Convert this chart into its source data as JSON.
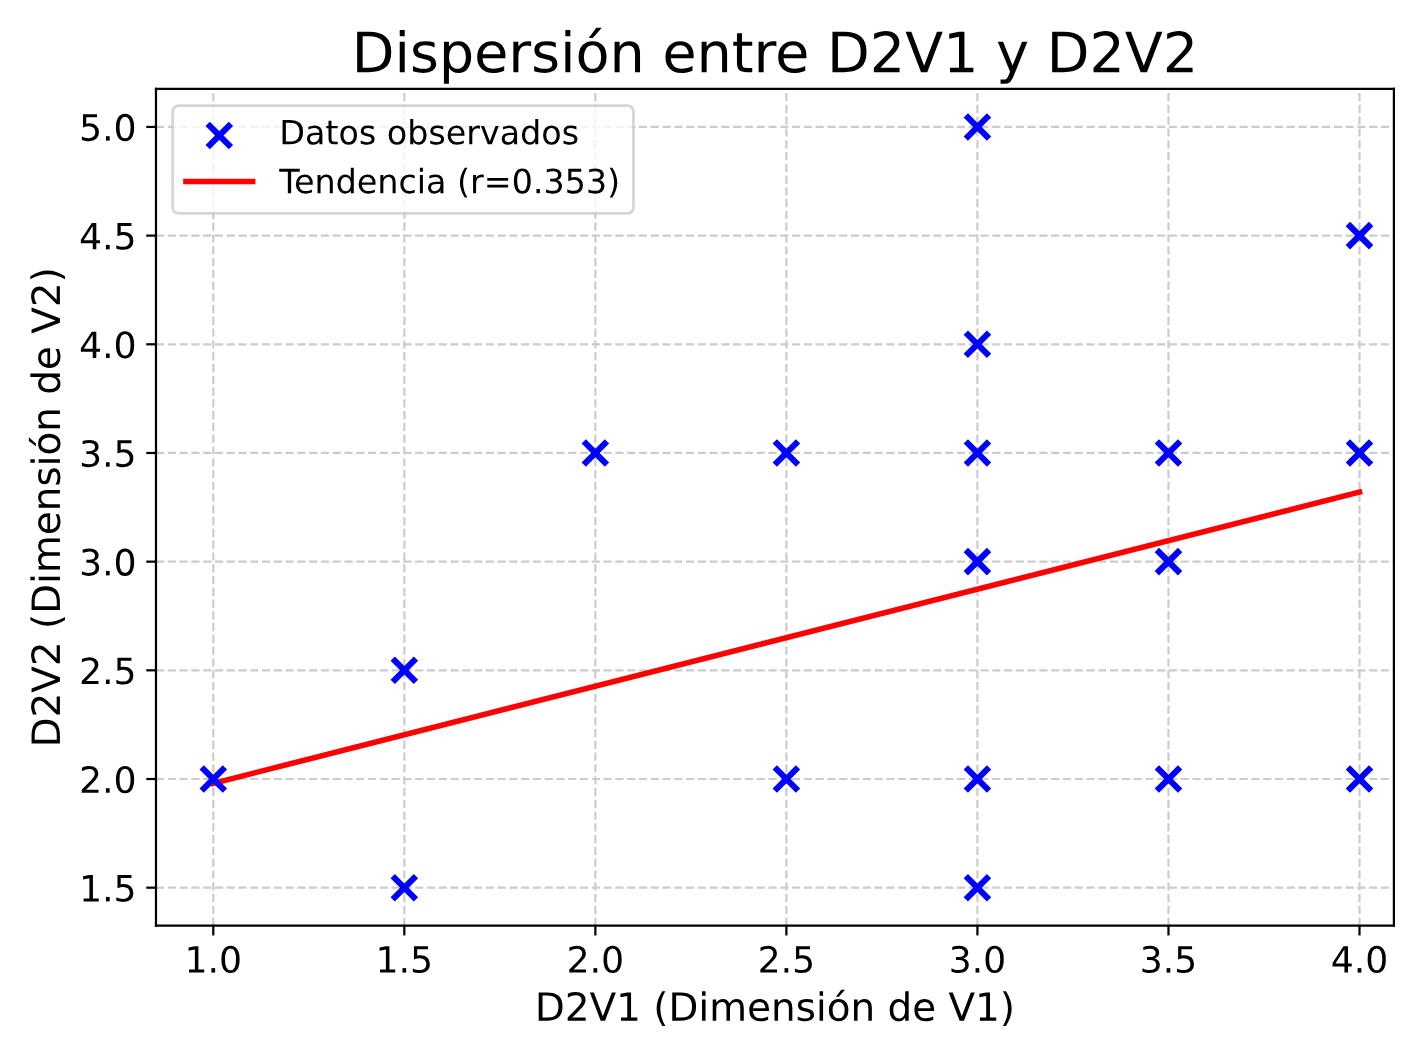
{
  "chart_data": {
    "type": "scatter",
    "title": "Dispersión entre D2V1 y D2V2",
    "xlabel": "D2V1 (Dimensión de V1)",
    "ylabel": "D2V2 (Dimensión de V2)",
    "xlim": [
      0.85,
      4.09
    ],
    "ylim": [
      1.325,
      5.175
    ],
    "xticks": [
      {
        "value": 1,
        "label": "1.0"
      },
      {
        "value": 1.5,
        "label": "1.5"
      },
      {
        "value": 2,
        "label": "2.0"
      },
      {
        "value": 2.5,
        "label": "2.5"
      },
      {
        "value": 3,
        "label": "3.0"
      },
      {
        "value": 3.5,
        "label": "3.5"
      },
      {
        "value": 4,
        "label": "4.0"
      }
    ],
    "yticks": [
      {
        "value": 1.5,
        "label": "1.5"
      },
      {
        "value": 2,
        "label": "2.0"
      },
      {
        "value": 2.5,
        "label": "2.5"
      },
      {
        "value": 3,
        "label": "3.0"
      },
      {
        "value": 3.5,
        "label": "3.5"
      },
      {
        "value": 4,
        "label": "4.0"
      },
      {
        "value": 4.5,
        "label": "4.5"
      },
      {
        "value": 5,
        "label": "5.0"
      }
    ],
    "grid": true,
    "legend": "top left",
    "series": [
      {
        "name": "Datos observados",
        "color": "#0000ff",
        "marker": "cross",
        "x": [
          1,
          1.5,
          1.5,
          2,
          2.5,
          2.5,
          3,
          3,
          3,
          3,
          3,
          3,
          3.5,
          3.5,
          3.5,
          4,
          4,
          4
        ],
        "values": [
          2,
          2.5,
          1.5,
          3.5,
          3.5,
          2,
          5,
          4,
          3.5,
          3,
          2,
          1.5,
          3.5,
          3,
          2,
          4.5,
          3.5,
          2
        ]
      },
      {
        "name": "Tendencia (r=0.353)",
        "type": "line",
        "color": "#ff0000",
        "line_style": "solid",
        "x": [
          1,
          4
        ],
        "values": [
          1.98,
          3.32
        ]
      }
    ]
  }
}
